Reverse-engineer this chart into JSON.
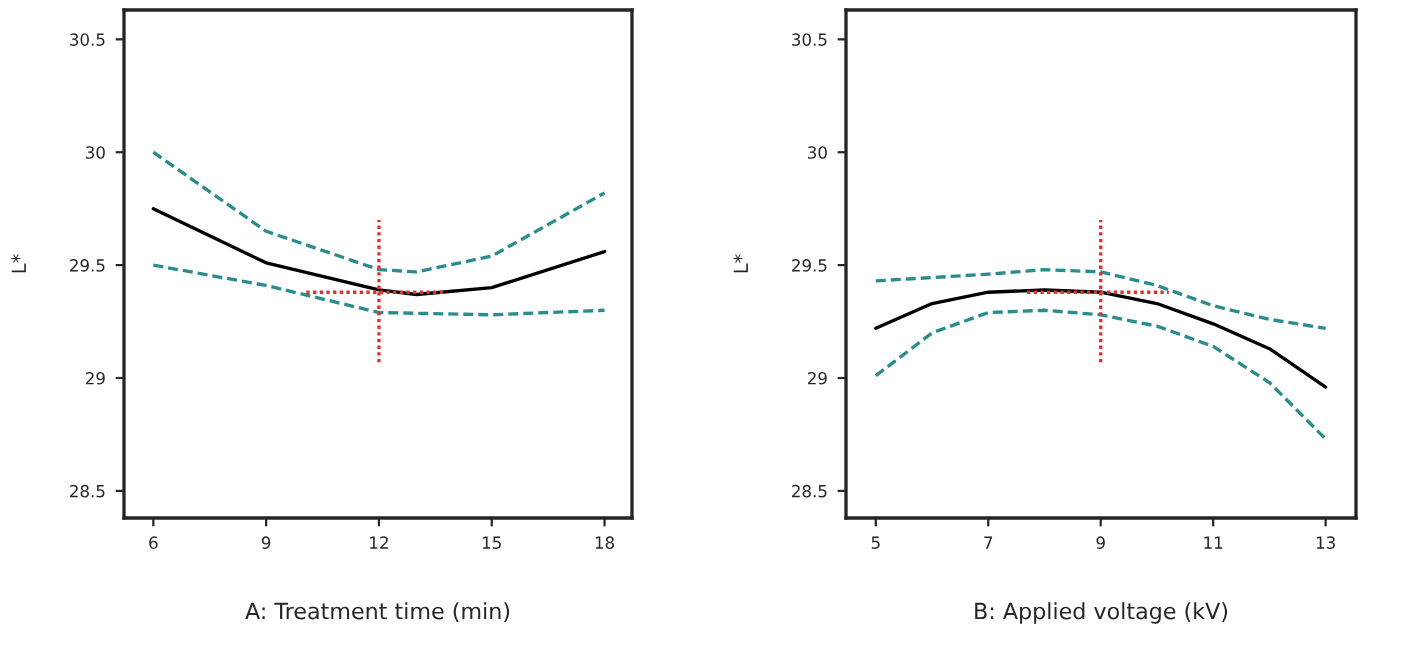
{
  "chart_data": [
    {
      "type": "line",
      "xlabel": "A: Treatment time (min)",
      "ylabel": "L*",
      "xlim": [
        5.22,
        18.73
      ],
      "ylim": [
        28.38,
        30.63
      ],
      "xticks": [
        6,
        9,
        12,
        15,
        18
      ],
      "yticks": [
        28.5,
        29,
        29.5,
        30,
        30.5
      ],
      "marker": "none",
      "series": [
        {
          "color": "#2a8c8c",
          "line_style": "dashed",
          "x": [
            6,
            9,
            12,
            13,
            15,
            18
          ],
          "values": [
            30.0,
            29.65,
            29.48,
            29.47,
            29.54,
            29.82
          ]
        },
        {
          "color": "#2a8c8c",
          "line_style": "dashed",
          "x": [
            6,
            9,
            12,
            15,
            18
          ],
          "values": [
            29.5,
            29.41,
            29.29,
            29.28,
            29.3
          ]
        },
        {
          "color": "#000000",
          "line_style": "solid",
          "x": [
            6,
            9,
            12,
            13,
            15,
            18
          ],
          "values": [
            29.75,
            29.51,
            29.39,
            29.37,
            29.4,
            29.56
          ]
        },
        {
          "color": "#e03030",
          "line_style": "dotted",
          "x": [
            12,
            12
          ],
          "values": [
            29.07,
            29.7
          ]
        },
        {
          "color": "#e03030",
          "line_style": "dotted",
          "x": [
            10.07,
            13.8
          ],
          "values": [
            29.38,
            29.38
          ]
        }
      ]
    },
    {
      "type": "line",
      "xlabel": "B: Applied voltage (kV)",
      "ylabel": "L*",
      "xlim": [
        4.47,
        13.54
      ],
      "ylim": [
        28.38,
        30.63
      ],
      "xticks": [
        5,
        7,
        9,
        11,
        13
      ],
      "yticks": [
        28.5,
        29,
        29.5,
        30,
        30.5
      ],
      "marker": "none",
      "series": [
        {
          "color": "#2a8c8c",
          "line_style": "dashed",
          "x": [
            5,
            7,
            8,
            9,
            10,
            11,
            12,
            13
          ],
          "values": [
            29.43,
            29.46,
            29.48,
            29.47,
            29.41,
            29.32,
            29.26,
            29.22
          ]
        },
        {
          "color": "#2a8c8c",
          "line_style": "dashed",
          "x": [
            5,
            6,
            7,
            8,
            9,
            10,
            11,
            12,
            13
          ],
          "values": [
            29.01,
            29.2,
            29.29,
            29.3,
            29.28,
            29.23,
            29.14,
            28.98,
            28.73
          ]
        },
        {
          "color": "#000000",
          "line_style": "solid",
          "x": [
            5,
            6,
            7,
            8,
            9,
            10,
            11,
            12,
            13
          ],
          "values": [
            29.22,
            29.33,
            29.38,
            29.39,
            29.38,
            29.33,
            29.24,
            29.13,
            28.96
          ]
        },
        {
          "color": "#e03030",
          "line_style": "dotted",
          "x": [
            9,
            9
          ],
          "values": [
            29.07,
            29.7
          ]
        },
        {
          "color": "#e03030",
          "line_style": "dotted",
          "x": [
            7.69,
            10.21
          ],
          "values": [
            29.38,
            29.38
          ]
        }
      ]
    }
  ]
}
